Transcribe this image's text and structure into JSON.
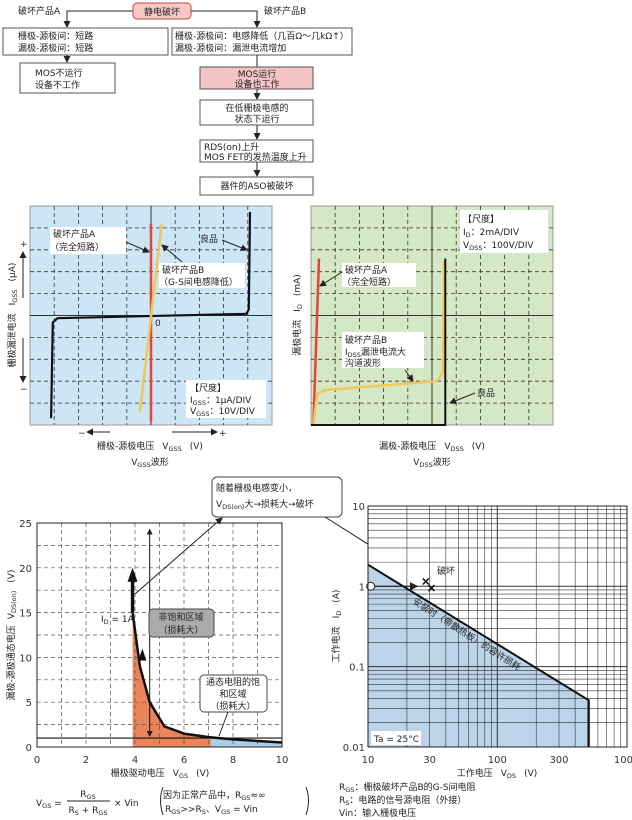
{
  "colors": {
    "root_fill": "#f6c9c9",
    "highlight_fill": "#f4c4c4",
    "scope_blue_bg": "#cde6f6",
    "scope_green_bg": "#d5e8c6",
    "short_red": "#e0463c",
    "inductance_yellow": "#f0c85a",
    "good_black": "#111111",
    "nonsat_orange": "#e9845b",
    "sat_blue": "#a9cfea",
    "soa_blue": "#bcd4ea"
  },
  "flow": {
    "root": "静电破坏",
    "left_label": "破坏产品A",
    "right_label": "破坏产品B",
    "a_box": [
      "栅极-源极间：短路",
      "漏极-源极间：短路"
    ],
    "a_result": [
      "MOS不运行",
      "设备不工作"
    ],
    "b_box": [
      "栅极-源极间：电感降低（几百Ω～几kΩ↑）",
      "漏极-源极间：漏泄电流增加"
    ],
    "b_steps": [
      [
        "MOS运行",
        "设备也工作"
      ],
      [
        "在低栅极电感的",
        "状态下运行"
      ],
      [
        "RDS(on)上升",
        "MOS FET的发热温度上升"
      ],
      [
        "器件的ASO被破坏"
      ]
    ]
  },
  "scope_gss": {
    "ylabel_cn": "栅极漏泄电流",
    "ylabel_sym": "I",
    "ylabel_sub": "GSS",
    "ylabel_unit": "(μA)",
    "plus": "+",
    "minus": "−",
    "zero": "0",
    "label_a": [
      "破坏产品A",
      "（完全短路）"
    ],
    "label_good": "良品",
    "label_b": [
      "破坏产品B",
      "（G-S间电感降低）"
    ],
    "scale": {
      "title": "【尺度】",
      "i_sym": "I",
      "i_sub": "GSS",
      "i_val": "：1μA/DIV",
      "v_sym": "V",
      "v_sub": "GSS",
      "v_val": "：10V/DIV"
    },
    "xlabel_cn": "栅极-源极电压",
    "xlabel_sym": "V",
    "xlabel_sub": "GSS",
    "xlabel_unit": "(V)",
    "caption_sym": "V",
    "caption_sub": "GSS",
    "caption_text": "波形"
  },
  "scope_dss": {
    "ylabel_cn": "漏极电流",
    "ylabel_sym": "I",
    "ylabel_sub": "D",
    "ylabel_unit": "(mA)",
    "label_a": [
      "破坏产品A",
      "（完全短路）"
    ],
    "label_b": [
      "破坏产品B",
      "I",
      "DSS",
      "漏泄电流大",
      "沟道波形"
    ],
    "label_good": "良品",
    "scale": {
      "title": "【尺度】",
      "i_sym": "I",
      "i_sub": "D",
      "i_val": "：2mA/DIV",
      "v_sym": "V",
      "v_sub": "DSS",
      "v_val": "：100V/DIV"
    },
    "xlabel_cn": "漏极-源极电压",
    "xlabel_sym": "V",
    "xlabel_sub": "DSS",
    "xlabel_unit": "(V)",
    "caption_sym": "V",
    "caption_sub": "DSS",
    "caption_text": "波形"
  },
  "vds_chart": {
    "ylabel_cn": "漏极-源极通态电压",
    "ylabel_sym": "V",
    "ylabel_sub": "DS(on)",
    "ylabel_unit": "(V)",
    "xlabel_cn": "栅极驱动电压",
    "xlabel_sym": "V",
    "xlabel_sub": "GS",
    "xlabel_unit": "(V)",
    "yticks": [
      "0",
      "5",
      "10",
      "15",
      "20",
      "25"
    ],
    "xticks": [
      "0",
      "2",
      "4",
      "6",
      "8",
      "10"
    ],
    "id_sym": "I",
    "id_sub": "D",
    "id_val": " = 1A",
    "nonsat_box": [
      "非饱和区域",
      "（损耗大）"
    ],
    "sat_box": [
      "通态电阻的饱",
      "和区域",
      "（损耗大）"
    ],
    "callout": {
      "line1": "随着栅极电感变小，",
      "sym": "V",
      "sub": "DS(on)",
      "rest": "大→损耗大→破坏"
    },
    "formula": {
      "lhs_sym": "V",
      "lhs_sub": "GS",
      "eq": " =",
      "num_sym": "R",
      "num_sub": "GS",
      "den_a": "R",
      "den_a_sub": "S",
      "den_plus": " + R",
      "den_b_sub": "GS",
      "times": "× Vin",
      "note1_a": "因为正常产品中，R",
      "note1_sub": "GS",
      "note1_b": "≈∞",
      "note2_a": "R",
      "note2_sub1": "GS",
      "note2_b": ">>R",
      "note2_sub2": "S",
      "note2_c": "、V",
      "note2_sub3": "GS",
      "note2_d": " = Vin"
    }
  },
  "soa_chart": {
    "ylabel_cn": "工作电流",
    "ylabel_sym": "I",
    "ylabel_sub": "D",
    "ylabel_unit": "(A)",
    "xlabel_cn": "工作电压",
    "xlabel_sym": "V",
    "xlabel_sub": "DS",
    "xlabel_unit": "(V)",
    "xticks": [
      "10",
      "30",
      "100",
      "300",
      "1000"
    ],
    "yticks": [
      "10",
      "1",
      "0.1",
      "0.01"
    ],
    "break_label": "破坏",
    "soa_label": "安装时（带散热板）的容许损耗",
    "ta_label": "Ta = 25°C",
    "notes": [
      {
        "sym": "R",
        "sub": "GS",
        "text": "：栅极破坏产品B的G-S间电阻"
      },
      {
        "sym": "R",
        "sub": "S",
        "text": "：电路的信号源电阻（外接）"
      },
      {
        "sym": "Vin",
        "sub": "",
        "text": "：输入栅极电压"
      }
    ]
  },
  "chart_data": [
    {
      "type": "line",
      "title": "",
      "xlim": [
        -5,
        5
      ],
      "ylim": [
        -5,
        5
      ],
      "series": [
        {
          "name": "良品",
          "points": [
            [
              -4.17,
              -4.66
            ],
            [
              -4.1,
              -0.3
            ],
            [
              -3.9,
              -0.1
            ],
            [
              3.9,
              0.1
            ],
            [
              4.0,
              0.3
            ],
            [
              4.05,
              4.75
            ]
          ]
        },
        {
          "name": "破坏产品A",
          "points": [
            [
              -0.04,
              -4.84
            ],
            [
              -0.04,
              4.2
            ]
          ]
        },
        {
          "name": "破坏产品B",
          "points": [
            [
              -0.5,
              -4.4
            ],
            [
              0.4,
              4.2
            ]
          ]
        }
      ]
    },
    {
      "type": "line",
      "title": "",
      "xlim": [
        0,
        10
      ],
      "ylim": [
        0,
        10
      ],
      "series": [
        {
          "name": "破坏产品A",
          "points": [
            [
              0.1,
              0
            ],
            [
              0.33,
              7.6
            ]
          ]
        },
        {
          "name": "破坏产品B",
          "points": [
            [
              0.1,
              0
            ],
            [
              0.25,
              1.4
            ],
            [
              0.6,
              1.6
            ],
            [
              5.2,
              2.0
            ],
            [
              5.45,
              2.4
            ],
            [
              5.5,
              7.5
            ]
          ]
        },
        {
          "name": "良品",
          "points": [
            [
              0,
              0
            ],
            [
              5.55,
              0
            ],
            [
              5.55,
              7.6
            ]
          ]
        }
      ]
    },
    {
      "type": "area",
      "title": "",
      "xlim": [
        0,
        10
      ],
      "ylim": [
        0,
        25
      ],
      "curve": [
        [
          3.9,
          15
        ],
        [
          4.2,
          9
        ],
        [
          4.6,
          5
        ],
        [
          5.2,
          2.3
        ],
        [
          6,
          1.5
        ],
        [
          7,
          1.1
        ],
        [
          8,
          0.85
        ],
        [
          10,
          0.5
        ]
      ],
      "nonsat_range": [
        3.9,
        7.1
      ],
      "sat_range": [
        7.1,
        10
      ],
      "reference_vds": 1,
      "arrow_to": 20
    },
    {
      "type": "area",
      "title": "",
      "xscale": "log",
      "yscale": "log",
      "xlim": [
        10,
        1000
      ],
      "ylim": [
        0.01,
        10
      ],
      "soa": [
        [
          10,
          1.86
        ],
        [
          510,
          0.038
        ],
        [
          510,
          0.01
        ]
      ],
      "operating_point": [
        10.5,
        1
      ],
      "break_points": [
        [
          28,
          1.15
        ],
        [
          31,
          0.95
        ]
      ]
    }
  ]
}
